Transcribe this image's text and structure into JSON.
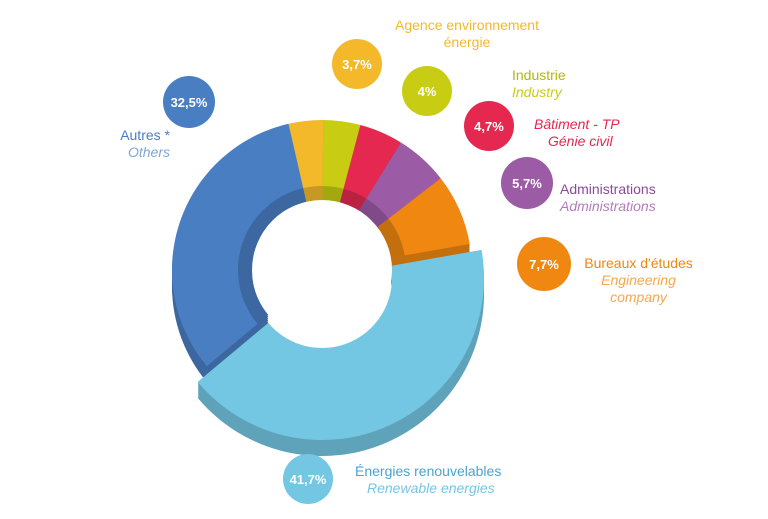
{
  "chart_data": {
    "type": "pie",
    "variant": "donut-3d",
    "title": "",
    "slices": [
      {
        "value": 41.7,
        "label": "41,7%",
        "name": "Énergies renouvelables",
        "name_en": "Renewable energies",
        "color": "#74c7e3"
      },
      {
        "value": 32.5,
        "label": "32,5%",
        "name": "Autres *",
        "name_en": "Others",
        "color": "#4a7ec2"
      },
      {
        "value": 3.7,
        "label": "3,7%",
        "name": "Agence environnement énergie",
        "name_en": "",
        "color": "#f3b92b"
      },
      {
        "value": 4.0,
        "label": "4%",
        "name": "Industrie",
        "name_en": "Industry",
        "color": "#c8cc12"
      },
      {
        "value": 4.7,
        "label": "4,7%",
        "name": "Bâtiment - TP",
        "name_en": "Génie civil",
        "color": "#e4284f"
      },
      {
        "value": 5.7,
        "label": "5,7%",
        "name": "Administrations",
        "name_en": "Administrations",
        "color": "#9b5ba5"
      },
      {
        "value": 7.7,
        "label": "7,7%",
        "name": "Bureaux d'études",
        "name_en": "Engineering company",
        "color": "#ef8711"
      }
    ]
  },
  "labels": {
    "renew_pct": "41,7%",
    "renew_fr": "Énergies renouvelables",
    "renew_en": "Renewable energies",
    "autres_pct": "32,5%",
    "autres_fr": "Autres *",
    "autres_en": "Others",
    "agence_pct": "3,7%",
    "agence_fr1": "Agence environnement",
    "agence_fr2": "énergie",
    "ind_pct": "4%",
    "ind_fr": "Industrie",
    "ind_en": "Industry",
    "bat_pct": "4,7%",
    "bat_fr": "Bâtiment - TP",
    "bat_en": "Génie civil",
    "adm_pct": "5,7%",
    "adm_fr": "Administrations",
    "adm_en": "Administrations",
    "bur_pct": "7,7%",
    "bur_fr": "Bureaux d'études",
    "bur_en1": "Engineering",
    "bur_en2": "company"
  }
}
